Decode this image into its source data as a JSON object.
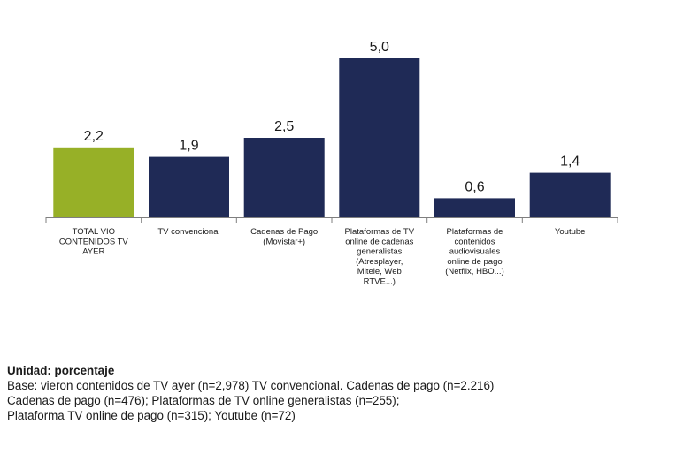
{
  "chart_data": {
    "type": "bar",
    "categories": [
      "TOTAL VIO CONTENIDOS TV AYER",
      "TV convencional",
      "Cadenas de Pago (Movistar+)",
      "Plataformas de TV online de cadenas generalistas (Atresplayer, Mitele, Web RTVE...)",
      "Plataformas de contenidos audiovisuales online de pago (Netflix, HBO...)",
      "Youtube"
    ],
    "category_lines": [
      [
        "TOTAL VIO",
        "CONTENIDOS TV",
        "AYER"
      ],
      [
        "TV convencional"
      ],
      [
        "Cadenas de Pago",
        "(Movistar+)"
      ],
      [
        "Plataformas de TV",
        "online de cadenas",
        "generalistas",
        "(Atresplayer,",
        "Mitele, Web",
        "RTVE...)"
      ],
      [
        "Plataformas de",
        "contenidos",
        "audiovisuales",
        "online de pago",
        "(Netflix, HBO...)"
      ],
      [
        "Youtube"
      ]
    ],
    "values": [
      2.2,
      1.9,
      2.5,
      5.0,
      0.6,
      1.4
    ],
    "value_labels": [
      "2,2",
      "1,9",
      "2,5",
      "5,0",
      "0,6",
      "1,4"
    ],
    "bar_colors": [
      "#97b027",
      "#1f2a56",
      "#1f2a56",
      "#1f2a56",
      "#1f2a56",
      "#1f2a56"
    ],
    "ylim": [
      0,
      5.0
    ],
    "grid": false,
    "axis_color": "#7f7f7f",
    "title": "",
    "xlabel": "",
    "ylabel": ""
  },
  "footnote": {
    "unit": "Unidad: porcentaje",
    "lines": [
      "Base: vieron contenidos de TV ayer (n=2,978) TV convencional. Cadenas de pago (n=2.216)",
      "Cadenas de pago (n=476); Plataformas de TV online generalistas (n=255);",
      "Plataforma TV online de pago (n=315); Youtube (n=72)"
    ]
  }
}
